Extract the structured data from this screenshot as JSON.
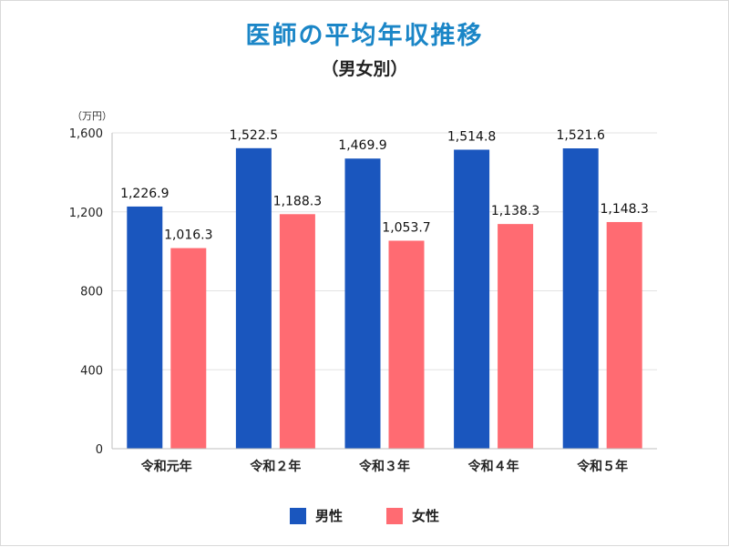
{
  "chart_data": {
    "type": "bar",
    "title": "医師の平均年収推移",
    "subtitle": "（男女別）",
    "unit_label": "（万円）",
    "categories": [
      "令和元年",
      "令和２年",
      "令和３年",
      "令和４年",
      "令和５年"
    ],
    "series": [
      {
        "name": "男性",
        "color": "#1a56be",
        "values": [
          1226.9,
          1522.5,
          1469.9,
          1514.8,
          1521.6
        ],
        "labels": [
          "1,226.9",
          "1,522.5",
          "1,469.9",
          "1,514.8",
          "1,521.6"
        ]
      },
      {
        "name": "女性",
        "color": "#ff6b72",
        "values": [
          1016.3,
          1188.3,
          1053.7,
          1138.3,
          1148.3
        ],
        "labels": [
          "1,016.3",
          "1,188.3",
          "1,053.7",
          "1,138.3",
          "1,148.3"
        ]
      }
    ],
    "ylim": [
      0,
      1600
    ],
    "yticks": [
      0,
      400,
      800,
      1200,
      1600
    ],
    "ytick_labels": [
      "0",
      "400",
      "800",
      "1,200",
      "1,600"
    ],
    "grid": true,
    "legend_position": "bottom-center"
  }
}
